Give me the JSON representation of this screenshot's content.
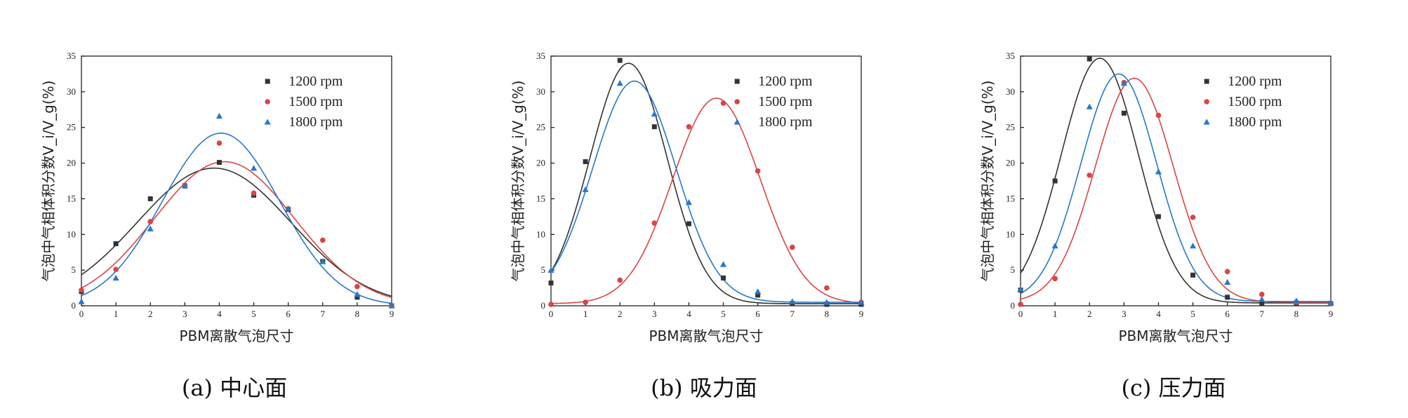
{
  "chart_data": [
    {
      "type": "scatter",
      "panel_caption": "(a) 中心面",
      "xlabel": "PBM离散气泡尺寸",
      "ylabel": "气泡中气相体积分数V_i/V_g(%)",
      "xlim": [
        0,
        9
      ],
      "ylim": [
        0,
        35
      ],
      "x_ticks": [
        0,
        1,
        2,
        3,
        4,
        5,
        6,
        7,
        8,
        9
      ],
      "y_ticks": [
        0,
        5,
        10,
        15,
        20,
        25,
        30,
        35
      ],
      "legend_position": "top-right",
      "series": [
        {
          "name": "1200 rpm",
          "marker": "square",
          "color": "#333333",
          "x": [
            0,
            1,
            2,
            3,
            4,
            5,
            6,
            7,
            8,
            9
          ],
          "y": [
            2.0,
            8.7,
            15.0,
            16.8,
            20.1,
            15.5,
            13.5,
            6.2,
            1.2,
            0.0
          ],
          "fit": {
            "amplitude": 19.3,
            "center": 3.85,
            "width": 2.23,
            "offset": 0
          }
        },
        {
          "name": "1500 rpm",
          "marker": "circle",
          "color": "#d94545",
          "x": [
            0,
            1,
            2,
            3,
            4,
            5,
            6,
            7,
            8,
            9
          ],
          "y": [
            2.2,
            5.1,
            11.8,
            16.9,
            22.8,
            15.8,
            13.6,
            9.2,
            2.7,
            0.0
          ],
          "fit": {
            "amplitude": 20.2,
            "center": 4.15,
            "width": 2.03,
            "offset": 0
          }
        },
        {
          "name": "1800 rpm",
          "marker": "triangle",
          "color": "#2878c8",
          "x": [
            0,
            1,
            2,
            3,
            4,
            5,
            6,
            7,
            8,
            9
          ],
          "y": [
            0.6,
            3.9,
            10.8,
            16.8,
            26.6,
            19.3,
            13.6,
            6.2,
            1.6,
            0.0
          ],
          "fit": {
            "amplitude": 24.2,
            "center": 4.05,
            "width": 1.7,
            "offset": 0
          }
        }
      ]
    },
    {
      "type": "scatter",
      "panel_caption": "(b) 吸力面",
      "xlabel": "PBM离散气泡尺寸",
      "ylabel": "气泡中气相体积分数V_i/V_g(%)",
      "xlim": [
        0,
        9
      ],
      "ylim": [
        0,
        35
      ],
      "x_ticks": [
        0,
        1,
        2,
        3,
        4,
        5,
        6,
        7,
        8,
        9
      ],
      "y_ticks": [
        0,
        5,
        10,
        15,
        20,
        25,
        30,
        35
      ],
      "legend_position": "top-right",
      "series": [
        {
          "name": "1200 rpm",
          "marker": "square",
          "color": "#333333",
          "x": [
            0,
            1,
            2,
            3,
            4,
            5,
            6,
            7,
            8,
            9
          ],
          "y": [
            3.2,
            20.2,
            34.4,
            25.1,
            11.5,
            3.9,
            1.5,
            0.3,
            0.2,
            0.2
          ],
          "fit": {
            "amplitude": 33.7,
            "center": 2.25,
            "width": 1.12,
            "offset": 0.3
          }
        },
        {
          "name": "1500 rpm",
          "marker": "circle",
          "color": "#d94545",
          "x": [
            0,
            1,
            2,
            3,
            4,
            5,
            6,
            7,
            8,
            9
          ],
          "y": [
            0.2,
            0.5,
            3.6,
            11.6,
            25.1,
            28.4,
            18.9,
            8.2,
            2.5,
            0.5
          ],
          "fit": {
            "amplitude": 28.8,
            "center": 4.8,
            "width": 1.27,
            "offset": 0.3
          }
        },
        {
          "name": "1800 rpm",
          "marker": "triangle",
          "color": "#2878c8",
          "x": [
            0,
            1,
            2,
            3,
            4,
            5,
            6,
            7,
            8,
            9
          ],
          "y": [
            5.0,
            16.3,
            31.2,
            26.9,
            14.5,
            5.8,
            2.0,
            0.6,
            0.5,
            0.5
          ],
          "fit": {
            "amplitude": 31.0,
            "center": 2.42,
            "width": 1.21,
            "offset": 0.5
          }
        }
      ]
    },
    {
      "type": "scatter",
      "panel_caption": "(c) 压力面",
      "xlabel": "PBM离散气泡尺寸",
      "ylabel": "气泡中气相体积分数V_i/V_g(%)",
      "xlim": [
        0,
        9
      ],
      "ylim": [
        0,
        35
      ],
      "x_ticks": [
        0,
        1,
        2,
        3,
        4,
        5,
        6,
        7,
        8,
        9
      ],
      "y_ticks": [
        0,
        5,
        10,
        15,
        20,
        25,
        30,
        35
      ],
      "legend_position": "top-right",
      "series": [
        {
          "name": "1200 rpm",
          "marker": "square",
          "color": "#333333",
          "x": [
            0,
            1,
            2,
            3,
            4,
            5,
            6,
            7,
            8,
            9
          ],
          "y": [
            2.2,
            17.5,
            34.6,
            27.0,
            12.5,
            4.3,
            1.2,
            0.4,
            0.4,
            0.3
          ],
          "fit": {
            "amplitude": 34.3,
            "center": 2.3,
            "width": 1.12,
            "offset": 0.4
          }
        },
        {
          "name": "1500 rpm",
          "marker": "circle",
          "color": "#d94545",
          "x": [
            0,
            1,
            2,
            3,
            4,
            5,
            6,
            7,
            8,
            9
          ],
          "y": [
            0.2,
            3.8,
            18.3,
            31.3,
            26.7,
            12.4,
            4.8,
            1.6,
            0.5,
            0.3
          ],
          "fit": {
            "amplitude": 31.4,
            "center": 3.3,
            "width": 1.13,
            "offset": 0.5
          }
        },
        {
          "name": "1800 rpm",
          "marker": "triangle",
          "color": "#2878c8",
          "x": [
            0,
            1,
            2,
            3,
            4,
            5,
            6,
            7,
            8,
            9
          ],
          "y": [
            2.3,
            8.4,
            27.9,
            31.2,
            18.8,
            8.4,
            3.3,
            0.9,
            0.7,
            0.5
          ],
          "fit": {
            "amplitude": 31.9,
            "center": 2.85,
            "width": 1.1,
            "offset": 0.6
          }
        }
      ]
    }
  ]
}
